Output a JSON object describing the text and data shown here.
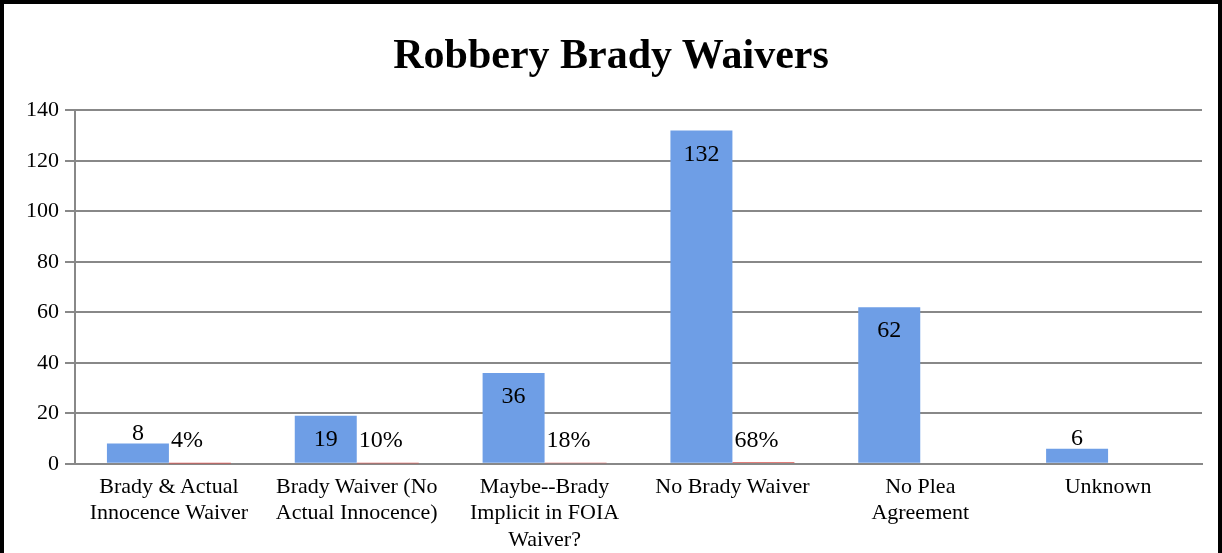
{
  "chart_data": {
    "type": "bar",
    "title": "Robbery Brady Waivers",
    "categories": [
      "Brady & Actual Innocence Waiver",
      "Brady Waiver (No Actual Innocence)",
      "Maybe--Brady Implicit in FOIA Waiver?",
      "No Brady Waiver",
      "No Plea Agreement",
      "Unknown"
    ],
    "series": [
      {
        "color": "#6e9ee6",
        "values": [
          8,
          19,
          36,
          132,
          62,
          6
        ],
        "value_labels": [
          "8",
          "19",
          "36",
          "132",
          "62",
          "6"
        ]
      },
      {
        "color": "#d9534f",
        "values": [
          0.04,
          0.1,
          0.18,
          0.68,
          null,
          null
        ],
        "value_labels": [
          "4%",
          "10%",
          "18%",
          "68%",
          null,
          null
        ]
      }
    ],
    "ylim": [
      0,
      140
    ],
    "yticks": [
      0,
      20,
      40,
      60,
      80,
      100,
      120,
      140
    ],
    "grid": "y",
    "legend": false
  }
}
